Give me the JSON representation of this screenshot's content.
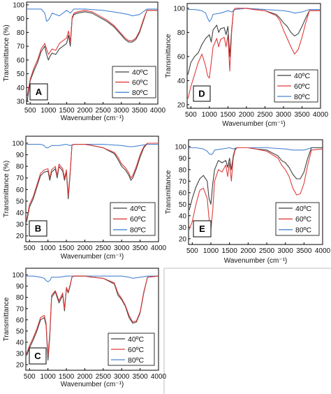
{
  "chart_data": [
    {
      "panel": "A",
      "type": "line",
      "xlabel": "Wavenumber (cm⁻¹)",
      "ylabel": "Transmittance (%)",
      "xlim": [
        400,
        4000
      ],
      "ylim": [
        28,
        102
      ],
      "xticks": [
        500,
        1000,
        1500,
        2000,
        2500,
        3000,
        3500,
        4000
      ],
      "yticks": [
        30,
        40,
        50,
        60,
        70,
        80,
        90,
        100
      ],
      "legend_position": "bottom-right",
      "series": [
        {
          "name": "40ºC",
          "color": "#404040",
          "x": [
            420,
            500,
            600,
            700,
            800,
            900,
            950,
            1000,
            1050,
            1100,
            1200,
            1300,
            1400,
            1500,
            1550,
            1600,
            1650,
            1700,
            1800,
            2000,
            2200,
            2400,
            2600,
            2800,
            3000,
            3100,
            3200,
            3300,
            3400,
            3500,
            3600,
            3700,
            4000
          ],
          "y": [
            30,
            45,
            52,
            58,
            66,
            70,
            64,
            60,
            63,
            65,
            64,
            68,
            70,
            72,
            78,
            70,
            90,
            93,
            94,
            95,
            94,
            91,
            88,
            84,
            78,
            75,
            73,
            73,
            75,
            80,
            88,
            96,
            96
          ]
        },
        {
          "name": "60ºC",
          "color": "#e03c3c",
          "x": [
            420,
            500,
            600,
            700,
            800,
            900,
            950,
            1000,
            1050,
            1100,
            1200,
            1300,
            1400,
            1500,
            1550,
            1600,
            1650,
            1700,
            1800,
            2000,
            2200,
            2400,
            2600,
            2800,
            3000,
            3100,
            3200,
            3300,
            3400,
            3500,
            3600,
            3700,
            4000
          ],
          "y": [
            34,
            46,
            54,
            60,
            68,
            72,
            68,
            64,
            66,
            68,
            67,
            72,
            74,
            76,
            81,
            73,
            91,
            94,
            95,
            96,
            95,
            92,
            89,
            85,
            79,
            76,
            74,
            74,
            76,
            81,
            89,
            96,
            96
          ]
        },
        {
          "name": "80ºC",
          "color": "#4a86d4",
          "x": [
            420,
            600,
            800,
            900,
            950,
            1000,
            1050,
            1100,
            1300,
            1500,
            1600,
            1700,
            2000,
            2500,
            3000,
            3200,
            3300,
            3500,
            3700,
            4000
          ],
          "y": [
            97,
            97,
            97,
            94,
            88,
            89,
            91,
            94,
            92,
            96,
            94,
            97,
            97,
            96,
            94,
            93,
            92,
            93,
            97,
            97
          ]
        }
      ]
    },
    {
      "panel": "D",
      "type": "line",
      "xlabel": "Wavenumber (cm⁻¹)",
      "ylabel": "Transmittance",
      "xlim": [
        400,
        4000
      ],
      "ylim": [
        17,
        104
      ],
      "xticks": [
        500,
        1000,
        1500,
        2000,
        2500,
        3000,
        3500,
        4000
      ],
      "yticks": [
        20,
        40,
        60,
        80,
        100
      ],
      "legend_position": "bottom-right",
      "series": [
        {
          "name": "40ºC",
          "color": "#404040",
          "x": [
            420,
            500,
            600,
            700,
            800,
            900,
            1000,
            1050,
            1100,
            1200,
            1250,
            1300,
            1400,
            1450,
            1500,
            1550,
            1600,
            1650,
            1700,
            1800,
            2000,
            2200,
            2500,
            2800,
            2900,
            3000,
            3100,
            3200,
            3300,
            3400,
            3500,
            3600,
            3700,
            4000
          ],
          "y": [
            45,
            55,
            60,
            63,
            70,
            75,
            78,
            72,
            82,
            86,
            80,
            83,
            84,
            78,
            85,
            60,
            82,
            98,
            100,
            100,
            100,
            99,
            98,
            95,
            92,
            88,
            85,
            80,
            77,
            79,
            85,
            92,
            98,
            98
          ]
        },
        {
          "name": "60ºC",
          "color": "#e03c3c",
          "x": [
            420,
            500,
            600,
            700,
            800,
            900,
            950,
            1000,
            1050,
            1100,
            1200,
            1250,
            1300,
            1400,
            1450,
            1500,
            1550,
            1600,
            1650,
            1700,
            1800,
            2000,
            2200,
            2500,
            2800,
            2900,
            3000,
            3100,
            3200,
            3300,
            3400,
            3500,
            3600,
            3700,
            4000
          ],
          "y": [
            25,
            35,
            45,
            55,
            62,
            52,
            44,
            42,
            55,
            68,
            75,
            68,
            74,
            76,
            68,
            78,
            48,
            80,
            98,
            100,
            100,
            100,
            99,
            98,
            94,
            90,
            82,
            75,
            68,
            62,
            66,
            76,
            88,
            98,
            98
          ]
        },
        {
          "name": "80ºC",
          "color": "#4a86d4",
          "x": [
            420,
            600,
            800,
            900,
            950,
            1000,
            1050,
            1100,
            1300,
            1500,
            1600,
            1700,
            2000,
            2500,
            3000,
            3200,
            3300,
            3500,
            3700,
            4000
          ],
          "y": [
            99,
            99,
            98,
            96,
            92,
            89,
            91,
            95,
            96,
            98,
            97,
            99,
            100,
            99,
            98,
            97,
            96,
            97,
            99,
            99
          ]
        }
      ]
    },
    {
      "panel": "B",
      "type": "line",
      "xlabel": "Wavenumber (cm⁻¹)",
      "ylabel": "Transmittance (%)",
      "xlim": [
        400,
        4000
      ],
      "ylim": [
        15,
        106
      ],
      "xticks": [
        500,
        1000,
        1500,
        2000,
        2500,
        3000,
        3500,
        4000
      ],
      "yticks": [
        20,
        30,
        40,
        50,
        60,
        70,
        80,
        90,
        100
      ],
      "legend_position": "bottom-right",
      "series": [
        {
          "name": "40ºC",
          "color": "#404040",
          "x": [
            420,
            500,
            600,
            700,
            800,
            900,
            1000,
            1050,
            1100,
            1200,
            1250,
            1300,
            1400,
            1450,
            1500,
            1550,
            1600,
            1650,
            1700,
            1800,
            2000,
            2200,
            2500,
            2800,
            2900,
            3000,
            3100,
            3200,
            3250,
            3300,
            3400,
            3500,
            3600,
            3700,
            4000
          ],
          "y": [
            32,
            45,
            52,
            62,
            72,
            75,
            76,
            68,
            75,
            78,
            70,
            80,
            76,
            68,
            75,
            52,
            72,
            98,
            99,
            99,
            99,
            98,
            96,
            91,
            86,
            80,
            77,
            72,
            68,
            70,
            78,
            88,
            96,
            100,
            100
          ]
        },
        {
          "name": "60ºC",
          "color": "#e03c3c",
          "x": [
            420,
            500,
            600,
            700,
            800,
            900,
            1000,
            1050,
            1100,
            1200,
            1250,
            1300,
            1400,
            1450,
            1500,
            1550,
            1600,
            1650,
            1700,
            1800,
            2000,
            2200,
            2500,
            2800,
            2900,
            3000,
            3100,
            3200,
            3250,
            3300,
            3400,
            3500,
            3600,
            3700,
            4000
          ],
          "y": [
            34,
            47,
            54,
            64,
            74,
            77,
            78,
            70,
            77,
            80,
            72,
            82,
            78,
            70,
            77,
            55,
            74,
            98,
            99,
            99,
            99,
            98,
            96,
            92,
            88,
            82,
            79,
            74,
            70,
            72,
            80,
            90,
            97,
            100,
            100
          ]
        },
        {
          "name": "80ºC",
          "color": "#4a86d4",
          "x": [
            420,
            600,
            800,
            900,
            950,
            1000,
            1050,
            1100,
            1300,
            1500,
            1600,
            1700,
            2000,
            2500,
            3000,
            3200,
            3300,
            3500,
            3700,
            4000
          ],
          "y": [
            99,
            99,
            99,
            98,
            96,
            96,
            97,
            98,
            98,
            99,
            98,
            99,
            99,
            99,
            98,
            97,
            97,
            98,
            99,
            99
          ]
        }
      ]
    },
    {
      "panel": "E",
      "type": "line",
      "xlabel": "Wavenumber (cm⁻¹)",
      "ylabel": "Transmittance",
      "xlim": [
        400,
        4000
      ],
      "ylim": [
        15,
        106
      ],
      "xticks": [
        500,
        1000,
        1500,
        2000,
        2500,
        3000,
        3500,
        4000
      ],
      "yticks": [
        20,
        30,
        40,
        50,
        60,
        70,
        80,
        90,
        100
      ],
      "legend_position": "bottom-right",
      "series": [
        {
          "name": "40ºC",
          "color": "#404040",
          "x": [
            420,
            500,
            600,
            700,
            800,
            900,
            950,
            1000,
            1050,
            1100,
            1200,
            1300,
            1400,
            1450,
            1500,
            1550,
            1600,
            1650,
            1700,
            1800,
            2000,
            2200,
            2500,
            2800,
            2900,
            3000,
            3100,
            3200,
            3300,
            3400,
            3500,
            3600,
            3700,
            4000
          ],
          "y": [
            45,
            55,
            65,
            72,
            75,
            70,
            55,
            50,
            68,
            80,
            88,
            86,
            88,
            82,
            90,
            80,
            92,
            98,
            99,
            99,
            99,
            98,
            97,
            92,
            88,
            86,
            82,
            76,
            72,
            72,
            78,
            90,
            99,
            99
          ]
        },
        {
          "name": "60ºC",
          "color": "#e03c3c",
          "x": [
            420,
            500,
            600,
            700,
            800,
            900,
            950,
            1000,
            1050,
            1100,
            1200,
            1300,
            1400,
            1450,
            1500,
            1550,
            1600,
            1650,
            1700,
            1800,
            2000,
            2200,
            2500,
            2800,
            2900,
            3000,
            3100,
            3200,
            3300,
            3400,
            3500,
            3600,
            3700,
            4000
          ],
          "y": [
            28,
            35,
            50,
            62,
            64,
            55,
            38,
            28,
            45,
            70,
            80,
            78,
            84,
            74,
            86,
            70,
            90,
            97,
            99,
            99,
            99,
            98,
            96,
            90,
            84,
            80,
            74,
            64,
            58,
            59,
            68,
            84,
            97,
            98
          ]
        },
        {
          "name": "80ºC",
          "color": "#4a86d4",
          "x": [
            420,
            600,
            800,
            900,
            950,
            1000,
            1050,
            1100,
            1300,
            1500,
            1600,
            1700,
            2000,
            2500,
            3000,
            3200,
            3300,
            3500,
            3700,
            4000
          ],
          "y": [
            99,
            99,
            98,
            96,
            94,
            93,
            94,
            97,
            98,
            99,
            98,
            99,
            99,
            99,
            98,
            97,
            97,
            97,
            99,
            99
          ]
        }
      ]
    },
    {
      "panel": "C",
      "type": "line",
      "xlabel": "Wavenumber (cm⁻¹)",
      "ylabel": "Transmittance",
      "xlim": [
        400,
        4000
      ],
      "ylim": [
        15,
        106
      ],
      "xticks": [
        500,
        1000,
        1500,
        2000,
        2500,
        3000,
        3500,
        4000
      ],
      "yticks": [
        20,
        30,
        40,
        50,
        60,
        70,
        80,
        90,
        100
      ],
      "legend_position": "bottom-right",
      "series": [
        {
          "name": "40ºC",
          "color": "#404040",
          "x": [
            420,
            500,
            600,
            700,
            800,
            900,
            950,
            1000,
            1050,
            1100,
            1200,
            1300,
            1400,
            1450,
            1500,
            1550,
            1600,
            1650,
            1700,
            1800,
            2000,
            2200,
            2500,
            2800,
            2900,
            3000,
            3100,
            3200,
            3300,
            3400,
            3500,
            3600,
            3700,
            4000
          ],
          "y": [
            28,
            35,
            42,
            50,
            60,
            62,
            55,
            24,
            45,
            80,
            85,
            75,
            82,
            68,
            88,
            84,
            90,
            98,
            99,
            99,
            99,
            98,
            97,
            92,
            82,
            78,
            72,
            62,
            57,
            58,
            66,
            84,
            98,
            99
          ]
        },
        {
          "name": "60ºC",
          "color": "#e03c3c",
          "x": [
            420,
            500,
            600,
            700,
            800,
            900,
            950,
            1000,
            1050,
            1100,
            1200,
            1300,
            1400,
            1450,
            1500,
            1550,
            1600,
            1650,
            1700,
            1800,
            2000,
            2200,
            2500,
            2800,
            2900,
            3000,
            3100,
            3200,
            3300,
            3400,
            3500,
            3600,
            3700,
            4000
          ],
          "y": [
            30,
            37,
            44,
            52,
            62,
            64,
            57,
            28,
            48,
            82,
            86,
            77,
            84,
            70,
            89,
            85,
            91,
            98,
            99,
            99,
            99,
            98,
            97,
            93,
            84,
            79,
            73,
            64,
            58,
            59,
            67,
            85,
            98,
            99
          ]
        },
        {
          "name": "80ºC",
          "color": "#4a86d4",
          "x": [
            420,
            600,
            800,
            900,
            950,
            1000,
            1050,
            1100,
            1300,
            1500,
            1600,
            1700,
            2000,
            2500,
            3000,
            3200,
            3300,
            3500,
            3700,
            4000
          ],
          "y": [
            99,
            99,
            98,
            97,
            95,
            94,
            95,
            98,
            98,
            99,
            99,
            99,
            99,
            99,
            99,
            98,
            97,
            98,
            99,
            99
          ]
        }
      ]
    }
  ]
}
